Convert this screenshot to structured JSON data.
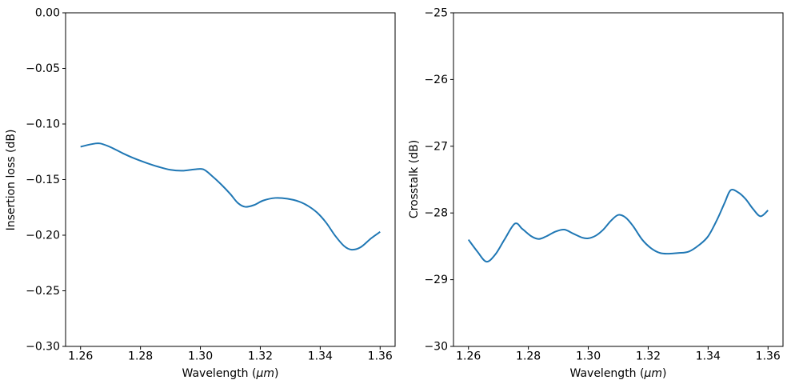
{
  "figure": {
    "background": "#ffffff",
    "text_color": "#000000",
    "spine_color": "#000000"
  },
  "chart_data": [
    {
      "type": "line",
      "title": "",
      "xlabel": "Wavelength (μm)",
      "xlabel_parts": {
        "prefix": "Wavelength (",
        "italic": "μm",
        "suffix": ")"
      },
      "ylabel": "Insertion loss (dB)",
      "xlim": [
        1.255,
        1.365
      ],
      "ylim": [
        -0.3,
        0.0
      ],
      "grid": false,
      "legend": "none",
      "line_color": "#1f77b4",
      "xticks": [
        1.26,
        1.28,
        1.3,
        1.32,
        1.34,
        1.36
      ],
      "xtick_labels": [
        "1.26",
        "1.28",
        "1.30",
        "1.32",
        "1.34",
        "1.36"
      ],
      "yticks": [
        0.0,
        -0.05,
        -0.1,
        -0.15,
        -0.2,
        -0.25,
        -0.3
      ],
      "ytick_labels": [
        "0.00",
        "−0.05",
        "−0.10",
        "−0.15",
        "−0.20",
        "−0.25",
        "−0.30"
      ],
      "series": [
        {
          "name": "insertion-loss",
          "x": [
            1.26,
            1.2635,
            1.2665,
            1.27,
            1.274,
            1.278,
            1.282,
            1.286,
            1.29,
            1.294,
            1.298,
            1.301,
            1.304,
            1.307,
            1.31,
            1.3125,
            1.315,
            1.318,
            1.321,
            1.325,
            1.329,
            1.333,
            1.336,
            1.339,
            1.342,
            1.345,
            1.348,
            1.3505,
            1.3535,
            1.357,
            1.36
          ],
          "y": [
            -0.1205,
            -0.1182,
            -0.1175,
            -0.1208,
            -0.1262,
            -0.131,
            -0.135,
            -0.1385,
            -0.1412,
            -0.142,
            -0.1408,
            -0.1408,
            -0.147,
            -0.1545,
            -0.163,
            -0.171,
            -0.1745,
            -0.1728,
            -0.1688,
            -0.1665,
            -0.1672,
            -0.1698,
            -0.1738,
            -0.1798,
            -0.1888,
            -0.2005,
            -0.2098,
            -0.213,
            -0.2108,
            -0.2028,
            -0.197
          ]
        }
      ]
    },
    {
      "type": "line",
      "title": "",
      "xlabel": "Wavelength (μm)",
      "xlabel_parts": {
        "prefix": "Wavelength (",
        "italic": "μm",
        "suffix": ")"
      },
      "ylabel": "Crosstalk (dB)",
      "xlim": [
        1.255,
        1.365
      ],
      "ylim": [
        -30,
        -25
      ],
      "grid": false,
      "legend": "none",
      "line_color": "#1f77b4",
      "xticks": [
        1.26,
        1.28,
        1.3,
        1.32,
        1.34,
        1.36
      ],
      "xtick_labels": [
        "1.26",
        "1.28",
        "1.30",
        "1.32",
        "1.34",
        "1.36"
      ],
      "yticks": [
        -25,
        -26,
        -27,
        -28,
        -29,
        -30
      ],
      "ytick_labels": [
        "−25",
        "−26",
        "−27",
        "−28",
        "−29",
        "−30"
      ],
      "series": [
        {
          "name": "crosstalk",
          "x": [
            1.26,
            1.263,
            1.266,
            1.269,
            1.272,
            1.2755,
            1.278,
            1.281,
            1.2835,
            1.286,
            1.289,
            1.292,
            1.295,
            1.298,
            1.3,
            1.3025,
            1.305,
            1.3075,
            1.31,
            1.3125,
            1.315,
            1.318,
            1.321,
            1.324,
            1.327,
            1.33,
            1.3335,
            1.337,
            1.34,
            1.343,
            1.3455,
            1.3475,
            1.35,
            1.3525,
            1.355,
            1.3575,
            1.36
          ],
          "y": [
            -28.4,
            -28.58,
            -28.73,
            -28.62,
            -28.4,
            -28.16,
            -28.24,
            -28.35,
            -28.39,
            -28.35,
            -28.28,
            -28.25,
            -28.31,
            -28.37,
            -28.38,
            -28.34,
            -28.25,
            -28.12,
            -28.03,
            -28.07,
            -28.2,
            -28.4,
            -28.53,
            -28.6,
            -28.61,
            -28.6,
            -28.58,
            -28.48,
            -28.35,
            -28.1,
            -27.85,
            -27.66,
            -27.69,
            -27.79,
            -27.94,
            -28.05,
            -27.96
          ]
        }
      ]
    }
  ]
}
